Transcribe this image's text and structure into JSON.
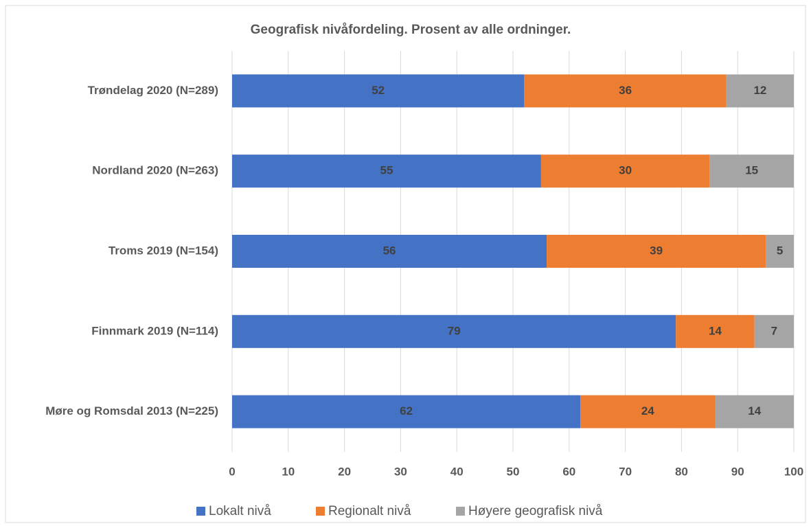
{
  "chart_data": {
    "type": "stacked_bar_horizontal",
    "title": "Geografisk nivåfordeling. Prosent av alle ordninger.",
    "categories": [
      "Trøndelag 2020 (N=289)",
      "Nordland 2020 (N=263)",
      "Troms 2019 (N=154)",
      "Finnmark 2019 (N=114)",
      "Møre og Romsdal 2013 (N=225)"
    ],
    "series": [
      {
        "name": "Lokalt nivå",
        "color": "#4472c4",
        "values": [
          52,
          55,
          56,
          79,
          62
        ]
      },
      {
        "name": "Regionalt nivå",
        "color": "#ed7d31",
        "values": [
          36,
          30,
          39,
          14,
          24
        ]
      },
      {
        "name": "Høyere geografisk nivå",
        "color": "#a5a5a5",
        "values": [
          12,
          15,
          5,
          7,
          14
        ]
      }
    ],
    "xlim": [
      0,
      100
    ],
    "xticks": [
      0,
      10,
      20,
      30,
      40,
      50,
      60,
      70,
      80,
      90,
      100
    ],
    "grid": true,
    "legend": "bottom"
  }
}
